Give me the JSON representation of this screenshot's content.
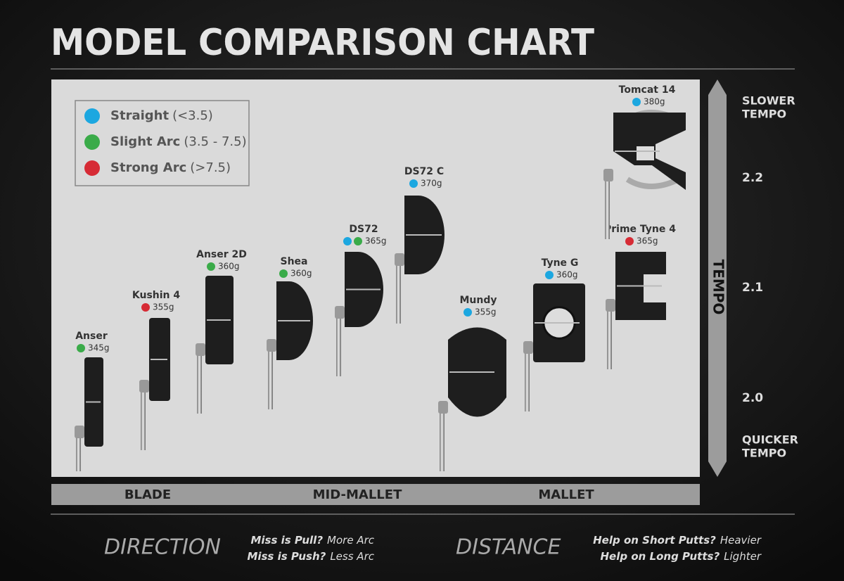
{
  "header": {
    "title": "MODEL COMPARISON CHART"
  },
  "legend": [
    {
      "name": "Straight",
      "range": "(<3.5)",
      "color": "#1ca7e0"
    },
    {
      "name": "Slight Arc",
      "range": "(3.5 - 7.5)",
      "color": "#3aab49"
    },
    {
      "name": "Strong Arc",
      "range": "(>7.5)",
      "color": "#d62b35"
    }
  ],
  "putters": [
    {
      "name": "Anser",
      "weight": "345g",
      "dots": [
        "#3aab49"
      ]
    },
    {
      "name": "Kushin 4",
      "weight": "355g",
      "dots": [
        "#d62b35"
      ]
    },
    {
      "name": "Anser 2D",
      "weight": "360g",
      "dots": [
        "#3aab49"
      ]
    },
    {
      "name": "Shea",
      "weight": "360g",
      "dots": [
        "#3aab49"
      ]
    },
    {
      "name": "DS72",
      "weight": "365g",
      "dots": [
        "#1ca7e0",
        "#3aab49"
      ]
    },
    {
      "name": "DS72 C",
      "weight": "370g",
      "dots": [
        "#1ca7e0"
      ]
    },
    {
      "name": "Mundy",
      "weight": "355g",
      "dots": [
        "#1ca7e0"
      ]
    },
    {
      "name": "Tyne G",
      "weight": "360g",
      "dots": [
        "#1ca7e0"
      ]
    },
    {
      "name": "Prime Tyne 4",
      "weight": "365g",
      "dots": [
        "#d62b35"
      ]
    },
    {
      "name": "Tomcat 14",
      "weight": "380g",
      "dots": [
        "#1ca7e0"
      ]
    }
  ],
  "tempo": {
    "label": "TEMPO",
    "top": [
      "SLOWER",
      "TEMPO"
    ],
    "bottom": [
      "QUICKER",
      "TEMPO"
    ],
    "ticks": [
      "2.2",
      "2.1",
      "2.0"
    ]
  },
  "categories": [
    "BLADE",
    "MID-MALLET",
    "MALLET"
  ],
  "footer": {
    "direction": {
      "heading": "DIRECTION",
      "lines": [
        {
          "question": "Miss is Pull?",
          "answer": "More Arc"
        },
        {
          "question": "Miss is Push?",
          "answer": "Less Arc"
        }
      ]
    },
    "distance": {
      "heading": "DISTANCE",
      "lines": [
        {
          "question": "Help on Short Putts?",
          "answer": "Heavier"
        },
        {
          "question": "Help on Long Putts?",
          "answer": "Lighter"
        }
      ]
    }
  }
}
